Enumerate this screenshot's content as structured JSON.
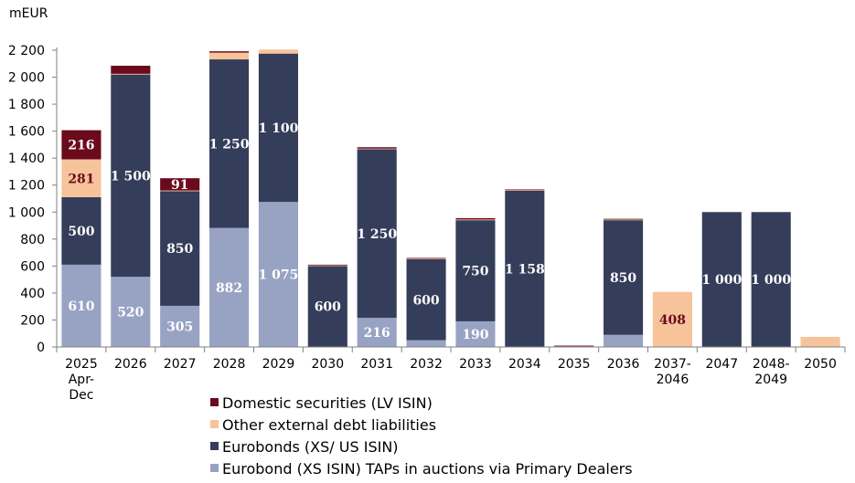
{
  "chart_data": {
    "type": "bar",
    "stacked": true,
    "unit_label": "mEUR",
    "categories": [
      [
        "2025",
        "Apr-",
        "Dec"
      ],
      [
        "2026"
      ],
      [
        "2027"
      ],
      [
        "2028"
      ],
      [
        "2029"
      ],
      [
        "2030"
      ],
      [
        "2031"
      ],
      [
        "2032"
      ],
      [
        "2033"
      ],
      [
        "2034"
      ],
      [
        "2035"
      ],
      [
        "2036"
      ],
      [
        "2037-",
        "2046"
      ],
      [
        "2047"
      ],
      [
        "2048-",
        "2049"
      ],
      [
        "2050"
      ]
    ],
    "ylim": [
      0,
      2200
    ],
    "yticks": [
      0,
      200,
      400,
      600,
      800,
      1000,
      1200,
      1400,
      1600,
      1800,
      2000,
      2200
    ],
    "ytick_labels": [
      "0",
      "200",
      "400",
      "600",
      "800",
      "1 000",
      "1 200",
      "1 400",
      "1 600",
      "1 800",
      "2 000",
      "2 200"
    ],
    "series": [
      {
        "name": "Eurobond (XS ISIN) TAPs in auctions via Primary Dealers",
        "color": "#98a3c4",
        "label_color": "#ffffff",
        "values": [
          610,
          520,
          305,
          882,
          1075,
          0,
          216,
          50,
          190,
          0,
          0,
          90,
          0,
          0,
          0,
          0
        ],
        "labels": [
          "610",
          "520",
          "305",
          "882",
          "1 075",
          "",
          "216",
          "",
          "190",
          "",
          "",
          "",
          "",
          "",
          "",
          ""
        ]
      },
      {
        "name": "Eurobonds (XS/ US ISIN)",
        "color": "#343d5a",
        "label_color": "#ffffff",
        "values": [
          500,
          1500,
          850,
          1250,
          1100,
          600,
          1250,
          600,
          750,
          1158,
          0,
          850,
          0,
          1000,
          1000,
          0
        ],
        "labels": [
          "500",
          "1 500",
          "850",
          "1 250",
          "1 100",
          "600",
          "1 250",
          "600",
          "750",
          "1 158",
          "",
          "850",
          "",
          "1 000",
          "1 000",
          ""
        ]
      },
      {
        "name": "Other external debt liabilities",
        "color": "#f7c39a",
        "label_color": "#6b0a1c",
        "values": [
          281,
          5,
          5,
          50,
          30,
          5,
          5,
          5,
          5,
          5,
          5,
          5,
          408,
          0,
          0,
          75
        ],
        "labels": [
          "281",
          "",
          "",
          "",
          "",
          "",
          "",
          "",
          "",
          "",
          "",
          "",
          "408",
          "",
          "",
          ""
        ]
      },
      {
        "name": "Domestic securities (LV ISIN)",
        "color": "#6b0a1c",
        "label_color": "#ffffff",
        "values": [
          216,
          60,
          91,
          10,
          0,
          5,
          10,
          5,
          10,
          5,
          5,
          5,
          0,
          0,
          0,
          0
        ],
        "labels": [
          "216",
          "",
          "91",
          "",
          "",
          "",
          "",
          "",
          "",
          "",
          "",
          "",
          "",
          "",
          "",
          ""
        ]
      }
    ],
    "legend_order": [
      3,
      2,
      1,
      0
    ],
    "legend_position": "bottom"
  }
}
